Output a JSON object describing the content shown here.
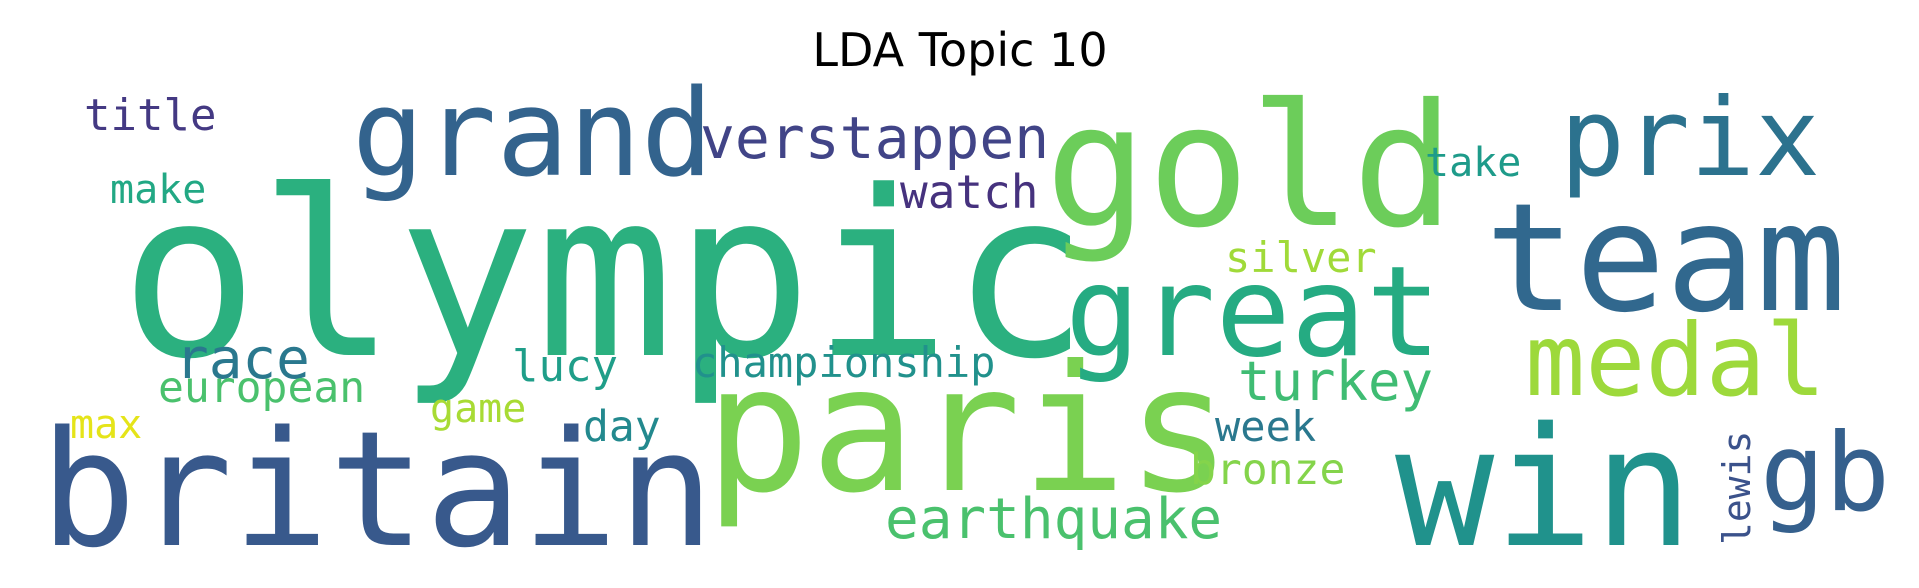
{
  "chart_data": {
    "type": "wordcloud",
    "title": "LDA Topic 10",
    "words": [
      {
        "text": "olympic",
        "color": "#2bb07f"
      },
      {
        "text": "gold",
        "color": "#6ccd5a"
      },
      {
        "text": "paris",
        "color": "#7ad151"
      },
      {
        "text": "britain",
        "color": "#38598c"
      },
      {
        "text": "team",
        "color": "#31688e"
      },
      {
        "text": "win",
        "color": "#20928c"
      },
      {
        "text": "grand",
        "color": "#33638d"
      },
      {
        "text": "great",
        "color": "#25ab82"
      },
      {
        "text": "prix",
        "color": "#2c728e"
      },
      {
        "text": "medal",
        "color": "#9dd93b"
      },
      {
        "text": "gb",
        "color": "#35608d"
      },
      {
        "text": "verstappen",
        "color": "#414487"
      },
      {
        "text": "race",
        "color": "#2a788e"
      },
      {
        "text": "earthquake",
        "color": "#4ac16d"
      },
      {
        "text": "turkey",
        "color": "#3fbc73"
      },
      {
        "text": "championship",
        "color": "#21918c"
      },
      {
        "text": "watch",
        "color": "#46327e"
      },
      {
        "text": "european",
        "color": "#4ac16d"
      },
      {
        "text": "lucy",
        "color": "#1f9e89"
      },
      {
        "text": "title",
        "color": "#443983"
      },
      {
        "text": "silver",
        "color": "#a0da39"
      },
      {
        "text": "make",
        "color": "#22a884"
      },
      {
        "text": "take",
        "color": "#1e9b8a"
      },
      {
        "text": "game",
        "color": "#a8db34"
      },
      {
        "text": "day",
        "color": "#23898e"
      },
      {
        "text": "week",
        "color": "#2a788e"
      },
      {
        "text": "bronze",
        "color": "#84d44b"
      },
      {
        "text": "max",
        "color": "#e5e419"
      },
      {
        "text": "lewis",
        "color": "#3b528b"
      }
    ]
  }
}
